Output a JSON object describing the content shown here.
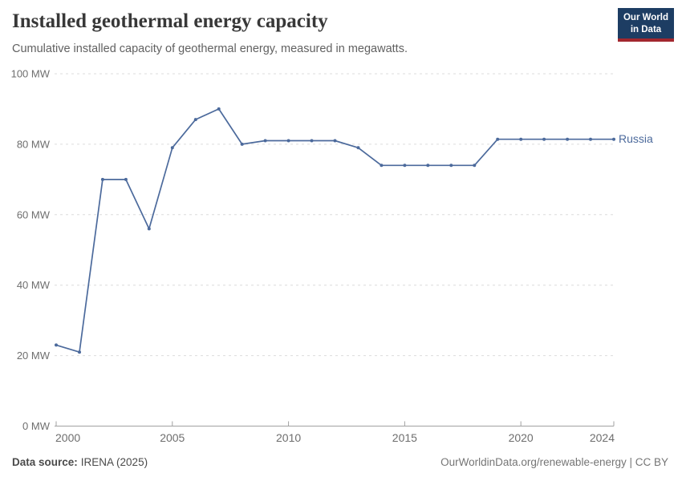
{
  "header": {
    "title": "Installed geothermal energy capacity",
    "subtitle": "Cumulative installed capacity of geothermal energy, measured in megawatts.",
    "logo": {
      "line1": "Our World",
      "line2": "in Data",
      "bg_color": "#1d3d63",
      "stripe_color": "#a2272e"
    }
  },
  "chart_data": {
    "type": "line",
    "title": "Installed geothermal energy capacity",
    "xlabel": "",
    "ylabel": "MW",
    "xlim": [
      2000,
      2024
    ],
    "ylim": [
      0,
      100
    ],
    "grid": "horizontal-dashed",
    "legend_position": "end-of-line",
    "x": [
      2000,
      2001,
      2002,
      2003,
      2004,
      2005,
      2006,
      2007,
      2008,
      2009,
      2010,
      2011,
      2012,
      2013,
      2014,
      2015,
      2016,
      2017,
      2018,
      2019,
      2020,
      2021,
      2022,
      2023,
      2024
    ],
    "series": [
      {
        "name": "Russia",
        "color": "#4c6a9c",
        "values": [
          23,
          21,
          70,
          70,
          56,
          79,
          87,
          90,
          80,
          81,
          81,
          81,
          81,
          79,
          74,
          74,
          74,
          74,
          74,
          81.4,
          81.4,
          81.4,
          81.4,
          81.4,
          81.4
        ]
      }
    ],
    "yticks": [
      {
        "value": 0,
        "label": "0 MW"
      },
      {
        "value": 20,
        "label": "20 MW"
      },
      {
        "value": 40,
        "label": "40 MW"
      },
      {
        "value": 60,
        "label": "60 MW"
      },
      {
        "value": 80,
        "label": "80 MW"
      },
      {
        "value": 100,
        "label": "100 MW"
      }
    ],
    "xticks": [
      {
        "value": 2000,
        "label": "2000"
      },
      {
        "value": 2005,
        "label": "2005"
      },
      {
        "value": 2010,
        "label": "2010"
      },
      {
        "value": 2015,
        "label": "2015"
      },
      {
        "value": 2020,
        "label": "2020"
      },
      {
        "value": 2024,
        "label": "2024"
      }
    ],
    "colors": {
      "gridline": "#dcdcdc",
      "axis": "#a1a1a1",
      "tick_label": "#6e6e6e"
    }
  },
  "footer": {
    "source_label": "Data source:",
    "source_value": "IRENA (2025)",
    "license": "OurWorldinData.org/renewable-energy | CC BY"
  }
}
